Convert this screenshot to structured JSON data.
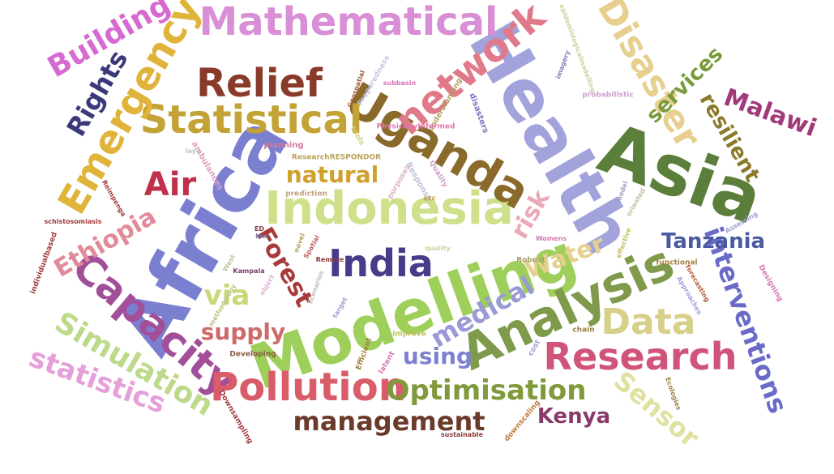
{
  "words": [
    {
      "text": "Africa",
      "color": "#7b7fcf"
    },
    {
      "text": "Health",
      "color": "#a3a3dc"
    },
    {
      "text": "Asia",
      "color": "#5b7f3a"
    },
    {
      "text": "Modelling",
      "color": "#9ecf5a"
    },
    {
      "text": "Indonesia",
      "color": "#cfe08a"
    },
    {
      "text": "Uganda",
      "color": "#8a6a2a"
    },
    {
      "text": "Analysis",
      "color": "#7f9a4a"
    },
    {
      "text": "Mathematical",
      "color": "#d98fd6"
    },
    {
      "text": "Statistical",
      "color": "#c3a236"
    },
    {
      "text": "Emergency",
      "color": "#e0b43a"
    },
    {
      "text": "Disaster",
      "color": "#e6cf8f"
    },
    {
      "text": "Capacity",
      "color": "#a24f9a"
    },
    {
      "text": "Research",
      "color": "#d0547a"
    },
    {
      "text": "Pollution",
      "color": "#d85c6a"
    },
    {
      "text": "Relief",
      "color": "#8a3a2a"
    },
    {
      "text": "network",
      "color": "#e07a8a"
    },
    {
      "text": "India",
      "color": "#4a3a8a"
    },
    {
      "text": "Simulation",
      "color": "#bdd98a"
    },
    {
      "text": "statistics",
      "color": "#e69fd9"
    },
    {
      "text": "Data",
      "color": "#d6d08a"
    },
    {
      "text": "Optimisation",
      "color": "#7f9a3a"
    },
    {
      "text": "management",
      "color": "#6a3a2a"
    },
    {
      "text": "Sensor",
      "color": "#e0e0a0"
    },
    {
      "text": "interventions",
      "color": "#6a6ac8"
    },
    {
      "text": "Air",
      "color": "#c0304a"
    },
    {
      "text": "Building",
      "color": "#d66ad0"
    },
    {
      "text": "Rights",
      "color": "#3a3a7a"
    },
    {
      "text": "Ethiopia",
      "color": "#e08a9a"
    },
    {
      "text": "Forest",
      "color": "#a83a3a"
    },
    {
      "text": "natural",
      "color": "#d0a02a"
    },
    {
      "text": "risk",
      "color": "#e9a9b5"
    },
    {
      "text": "Water",
      "color": "#e6cf8f"
    },
    {
      "text": "medical",
      "color": "#9a9ad6"
    },
    {
      "text": "supply",
      "color": "#d06a6a"
    },
    {
      "text": "using",
      "color": "#7f80d0"
    },
    {
      "text": "via",
      "color": "#c9d97a"
    },
    {
      "text": "Tanzania",
      "color": "#4a5aa0"
    },
    {
      "text": "Kenya",
      "color": "#8a3a6a"
    },
    {
      "text": "services",
      "color": "#7a9a3a"
    },
    {
      "text": "resilient",
      "color": "#8a7a2a"
    },
    {
      "text": "Malawi",
      "color": "#a03a7a"
    },
    {
      "text": "ResearchRESPONDOR",
      "color": "#b8a35a"
    },
    {
      "text": "planning",
      "color": "#d07aa0"
    },
    {
      "text": "ambulances",
      "color": "#e0a0c0"
    },
    {
      "text": "Iaya",
      "color": "#c0c0c0"
    },
    {
      "text": "Geospatial",
      "color": "#a35a3a"
    },
    {
      "text": "Preparedness",
      "color": "#c5c5e5"
    },
    {
      "text": "subbasin",
      "color": "#d07ab0"
    },
    {
      "text": "understanding",
      "color": "#b0a060"
    },
    {
      "text": "disasters",
      "color": "#7a7ac0"
    },
    {
      "text": "PhysicallyInformed",
      "color": "#e07ab0"
    },
    {
      "text": "tools",
      "color": "#d0d080"
    },
    {
      "text": "Response",
      "color": "#c0c0e0"
    },
    {
      "text": "purposes",
      "color": "#e0b0c0"
    },
    {
      "text": "Quality",
      "color": "#d0a0d0"
    },
    {
      "text": "etc",
      "color": "#c0a040"
    },
    {
      "text": "imagery",
      "color": "#8a7ab0"
    },
    {
      "text": "probabilistic",
      "color": "#d0a0d0"
    },
    {
      "text": "epidemiologicalmodelling",
      "color": "#d0d0a0"
    },
    {
      "text": "prediction",
      "color": "#c0a080"
    },
    {
      "text": "model",
      "color": "#a0a0c0"
    },
    {
      "text": "oriented",
      "color": "#c0c0a0"
    },
    {
      "text": "Kampala",
      "color": "#7a3a6a"
    },
    {
      "text": "schistosomiasis",
      "color": "#a03a3a"
    },
    {
      "text": "Reimpenga",
      "color": "#a03a3a"
    },
    {
      "text": "ED",
      "color": "#8a3a3a"
    },
    {
      "text": "low",
      "color": "#7a7ab0"
    },
    {
      "text": "novel",
      "color": "#b0a060"
    },
    {
      "text": "Spatial",
      "color": "#c06060"
    },
    {
      "text": "Remote",
      "color": "#8a3a3a"
    },
    {
      "text": "quality",
      "color": "#d0d0a0"
    },
    {
      "text": "Womens",
      "color": "#d07ab0"
    },
    {
      "text": "effective",
      "color": "#c0c060"
    },
    {
      "text": "Robust",
      "color": "#a0a060"
    },
    {
      "text": "functional",
      "color": "#a08040"
    },
    {
      "text": "Assessing",
      "color": "#a0a0d0"
    },
    {
      "text": "West",
      "color": "#c0c0a0"
    },
    {
      "text": "object",
      "color": "#e0b0d0"
    },
    {
      "text": "Scenarios",
      "color": "#c0c0c0"
    },
    {
      "text": "individualbased",
      "color": "#a03a3a"
    },
    {
      "text": "methodology",
      "color": "#c0c080"
    },
    {
      "text": "target",
      "color": "#a0a0d0"
    },
    {
      "text": "forecasting",
      "color": "#b05a3a"
    },
    {
      "text": "Approaches",
      "color": "#a0a0e0"
    },
    {
      "text": "Designing",
      "color": "#d07ab0"
    },
    {
      "text": "Developing",
      "color": "#8a5a3a"
    },
    {
      "text": "Efficient",
      "color": "#a08040"
    },
    {
      "text": "latent",
      "color": "#d07ab0"
    },
    {
      "text": "improve",
      "color": "#c0c060"
    },
    {
      "text": "chain",
      "color": "#a08040"
    },
    {
      "text": "cost",
      "color": "#a0a0d0"
    },
    {
      "text": "Downsampling",
      "color": "#a03a3a"
    },
    {
      "text": "downscaling",
      "color": "#c07a3a"
    },
    {
      "text": "sustainable",
      "color": "#8a3a3a"
    },
    {
      "text": "Ecologies",
      "color": "#a08040"
    }
  ]
}
